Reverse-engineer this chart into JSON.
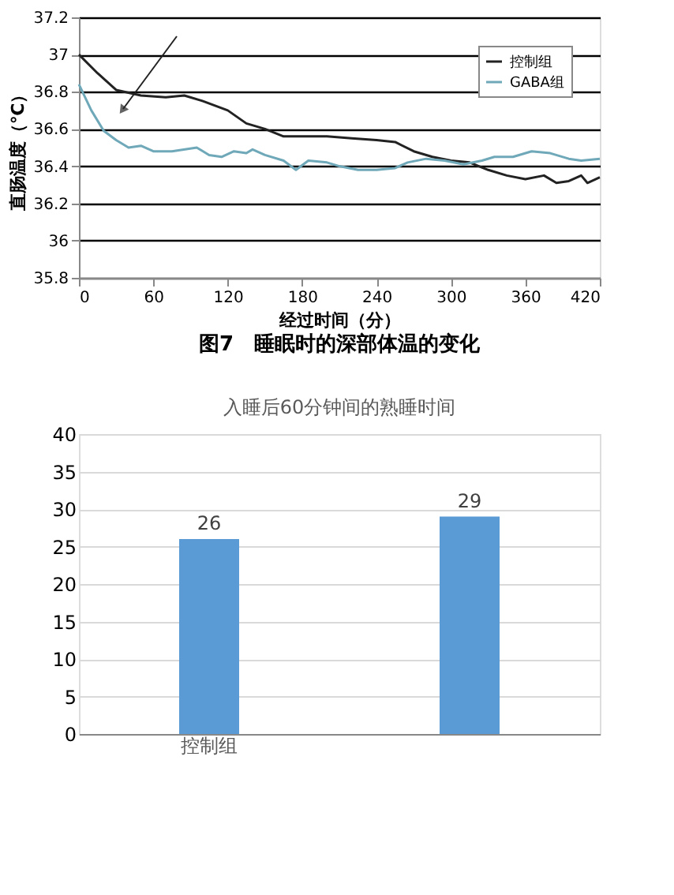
{
  "chart_data": [
    {
      "type": "line",
      "title": "图7　睡眠时的深部体温的变化",
      "xlabel": "经过时间（分）",
      "ylabel": "直肠温度（℃）",
      "xlim": [
        0,
        420
      ],
      "xticks": [
        0,
        60,
        120,
        180,
        240,
        300,
        360,
        420
      ],
      "ylim": [
        35.8,
        37.2
      ],
      "yticks": [
        35.8,
        36,
        36.2,
        36.4,
        36.6,
        36.8,
        37,
        37.2
      ],
      "grid": "y",
      "legend": "top right",
      "marker": "none",
      "line_style": "solid",
      "series": [
        {
          "name": "控制组",
          "color": "#222222",
          "x": [
            0,
            15,
            30,
            50,
            70,
            85,
            100,
            120,
            135,
            150,
            165,
            180,
            200,
            220,
            240,
            255,
            270,
            285,
            300,
            315,
            330,
            345,
            360,
            375,
            385,
            395,
            405,
            410,
            420
          ],
          "values": [
            37.0,
            36.9,
            36.81,
            36.78,
            36.77,
            36.78,
            36.75,
            36.7,
            36.63,
            36.6,
            36.56,
            36.56,
            36.56,
            36.55,
            36.54,
            36.53,
            36.48,
            36.45,
            36.43,
            36.42,
            36.38,
            36.35,
            36.33,
            36.35,
            36.31,
            36.32,
            36.35,
            36.31,
            36.34
          ]
        },
        {
          "name": "GABA组",
          "color": "#6fa8b8",
          "x": [
            0,
            10,
            20,
            30,
            40,
            50,
            60,
            75,
            95,
            105,
            115,
            125,
            135,
            140,
            150,
            165,
            175,
            185,
            200,
            210,
            225,
            240,
            255,
            265,
            280,
            295,
            310,
            325,
            335,
            350,
            365,
            380,
            395,
            405,
            420
          ],
          "values": [
            36.84,
            36.7,
            36.59,
            36.54,
            36.5,
            36.51,
            36.48,
            36.48,
            36.5,
            36.46,
            36.45,
            36.48,
            36.47,
            36.49,
            36.46,
            36.43,
            36.38,
            36.43,
            36.42,
            36.4,
            36.38,
            36.38,
            36.39,
            36.42,
            36.44,
            36.43,
            36.41,
            36.43,
            36.45,
            36.45,
            36.48,
            36.47,
            36.44,
            36.43,
            36.44
          ]
        }
      ]
    },
    {
      "type": "bar",
      "title": "入睡后60分钟间的熟睡时间",
      "categories": [
        "控制组",
        null
      ],
      "values": [
        26,
        29
      ],
      "color": "#5b9bd5",
      "ylim": [
        0,
        40
      ],
      "yticks": [
        0,
        5,
        10,
        15,
        20,
        25,
        30,
        35,
        40
      ],
      "grid": "y",
      "data_labels": true
    }
  ]
}
